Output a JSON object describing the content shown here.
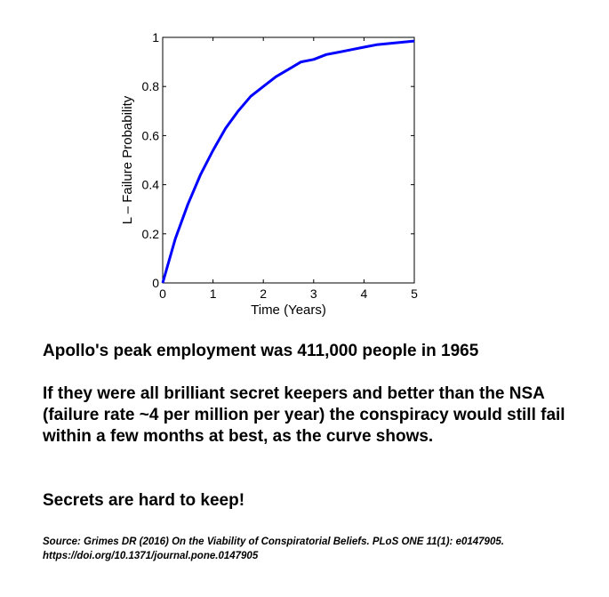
{
  "chart_data": {
    "type": "line",
    "title": "",
    "xlabel": "Time (Years)",
    "ylabel": "L – Failure Probability",
    "xlim": [
      0,
      5
    ],
    "ylim": [
      0,
      1
    ],
    "xticks": [
      0,
      1,
      2,
      3,
      4,
      5
    ],
    "xtick_labels": [
      "0",
      "1",
      "2",
      "3",
      "4",
      "5"
    ],
    "yticks": [
      0,
      0.2,
      0.4,
      0.6,
      0.8,
      1
    ],
    "ytick_labels": [
      "0",
      "0.2",
      "0.4",
      "0.6",
      "0.8",
      "1"
    ],
    "grid": false,
    "series": [
      {
        "color": "#0000ff",
        "x": [
          0,
          0.25,
          0.5,
          0.75,
          1,
          1.25,
          1.5,
          1.75,
          2,
          2.25,
          2.5,
          2.75,
          3,
          3.25,
          3.5,
          3.75,
          4,
          4.25,
          4.5,
          4.75,
          5
        ],
        "y": [
          0,
          0.18,
          0.32,
          0.44,
          0.54,
          0.63,
          0.7,
          0.76,
          0.8,
          0.84,
          0.87,
          0.9,
          0.91,
          0.93,
          0.94,
          0.95,
          0.96,
          0.97,
          0.975,
          0.98,
          0.985
        ]
      }
    ]
  },
  "text": {
    "line1": "Apollo's peak employment was 411,000 people in 1965",
    "para2": "If they were all brilliant secret keepers and better than the NSA (failure rate ~4 per million per year) the conspiracy would still fail within a few months at best, as the curve shows.",
    "line3": "Secrets are hard to keep!",
    "source_line1": "Source: Grimes DR (2016) On the Viability of Conspiratorial Beliefs. PLoS ONE 11(1): e0147905.",
    "source_line2": "https://doi.org/10.1371/journal.pone.0147905"
  }
}
